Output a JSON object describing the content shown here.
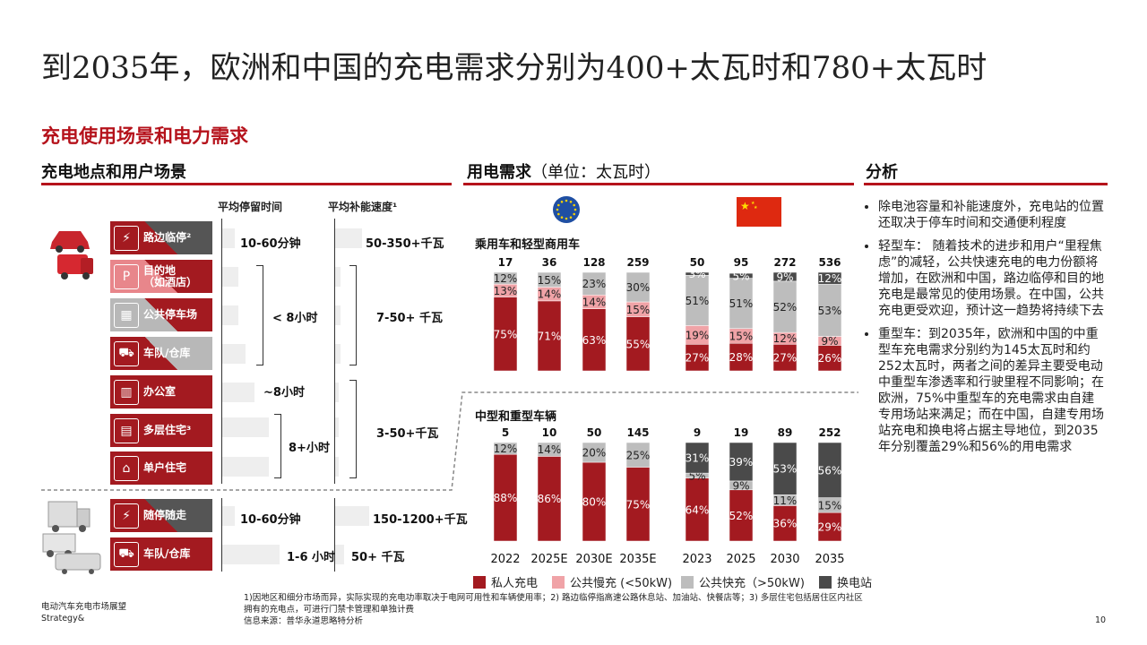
{
  "title": "到2035年，欧洲和中国的充电需求分别为400+太瓦时和780+太瓦时",
  "subtitle": "充电使用场景和电力需求",
  "left": {
    "header": "充电地点和用户场景",
    "col_stay": "平均停留时间",
    "col_speed": "平均补能速度¹",
    "rows": [
      {
        "label": "路边临停²",
        "icon": "charger-icon"
      },
      {
        "label": "目的地\n（如酒店）",
        "icon": "parking-icon"
      },
      {
        "label": "公共停车场",
        "icon": "building-icon"
      },
      {
        "label": "车队/仓库",
        "icon": "fleet-icon"
      },
      {
        "label": "办公室",
        "icon": "office-icon"
      },
      {
        "label": "多层住宅³",
        "icon": "apartment-icon"
      },
      {
        "label": "单户住宅",
        "icon": "house-icon"
      },
      {
        "label": "随停随走",
        "icon": "charger-icon"
      },
      {
        "label": "车队/仓库",
        "icon": "fleet-icon"
      }
    ],
    "stay": {
      "roadside": "10-60分钟",
      "group1": "< 8小时",
      "office": "~8小时",
      "group2": "8+小时",
      "truck_roadside": "10-60分钟",
      "truck_fleet": "1-6 小时"
    },
    "speed": {
      "roadside": "50-350+千瓦",
      "group1": "7-50+ 千瓦",
      "group2": "3-50+千瓦",
      "truck_roadside": "150-1200+千瓦",
      "truck_fleet": "50+ 千瓦"
    }
  },
  "middle": {
    "header": "用电需求",
    "header_unit": "（单位：太瓦时）",
    "section_light": "乘用车和轻型商用车",
    "section_heavy": "中型和重型车辆",
    "legend": [
      "私人充电",
      "公共慢充 (<50kW)",
      "公共快充（>50kW)",
      "换电站"
    ],
    "colors": {
      "private": "#a31a20",
      "slow": "#f0a3a7",
      "fast": "#bdbdbd",
      "swap": "#4a4a4a"
    }
  },
  "chart_data": [
    {
      "type": "bar",
      "title": "乘用车和轻型商用车 - 欧洲",
      "categories": [
        "2022",
        "2025E",
        "2030E",
        "2035E"
      ],
      "totals": [
        17,
        36,
        128,
        259
      ],
      "series": [
        {
          "name": "私人充电",
          "values": [
            75,
            71,
            63,
            55
          ]
        },
        {
          "name": "公共慢充 (<50kW)",
          "values": [
            13,
            14,
            14,
            15
          ]
        },
        {
          "name": "公共快充（>50kW)",
          "values": [
            12,
            15,
            23,
            30
          ]
        }
      ]
    },
    {
      "type": "bar",
      "title": "乘用车和轻型商用车 - 中国",
      "categories": [
        "2023",
        "2025",
        "2030",
        "2035"
      ],
      "totals": [
        50,
        95,
        272,
        536
      ],
      "series": [
        {
          "name": "私人充电",
          "values": [
            27,
            28,
            27,
            26
          ]
        },
        {
          "name": "公共慢充 (<50kW)",
          "values": [
            19,
            15,
            12,
            9
          ]
        },
        {
          "name": "公共快充（>50kW)",
          "values": [
            51,
            51,
            52,
            53
          ]
        },
        {
          "name": "换电站",
          "values": [
            3,
            5,
            9,
            12
          ]
        }
      ]
    },
    {
      "type": "bar",
      "title": "中型和重型车辆 - 欧洲",
      "categories": [
        "2022",
        "2025E",
        "2030E",
        "2035E"
      ],
      "totals": [
        5,
        10,
        50,
        145
      ],
      "series": [
        {
          "name": "私人充电",
          "values": [
            88,
            86,
            80,
            75
          ]
        },
        {
          "name": "公共快充（>50kW)",
          "values": [
            12,
            14,
            20,
            25
          ]
        }
      ]
    },
    {
      "type": "bar",
      "title": "中型和重型车辆 - 中国",
      "categories": [
        "2023",
        "2025",
        "2030",
        "2035"
      ],
      "totals": [
        9,
        19,
        89,
        252
      ],
      "series": [
        {
          "name": "私人充电",
          "values": [
            64,
            52,
            36,
            29
          ]
        },
        {
          "name": "公共快充（>50kW)",
          "values": [
            5,
            9,
            11,
            15
          ]
        },
        {
          "name": "换电站",
          "values": [
            31,
            39,
            53,
            56
          ]
        }
      ]
    }
  ],
  "analysis": {
    "header": "分析",
    "bullets": [
      "除电池容量和补能速度外，充电站的位置还取决于停车时间和交通便利程度",
      "轻型车：  随着技术的进步和用户“里程焦虑”的减轻，公共快速充电的电力份额将增加，在欧洲和中国，路边临停和目的地充电是最常见的使用场景。在中国，公共充电更受欢迎，预计这一趋势将持续下去",
      "重型车：到2035年，欧洲和中国的中重型车充电需求分别约为145太瓦时和约252太瓦时，两者之间的差异主要受电动中重型车渗透率和行驶里程不同影响；在欧洲，75%中重型车的充电需求由自建专用场站来满足；而在中国，自建专用场站充电和换电将占据主导地位，到2035年分别覆盖29%和56%的用电需求"
    ]
  },
  "footer": {
    "left1": "电动汽车充电市场展望",
    "left2": "Strategy&",
    "note1": "1)因地区和细分市场而异，实际实现的充电功率取决于电网可用性和车辆使用率；2) 路边临停指高速公路休息站、加油站、快餐店等；3) 多层住宅包括居住区内社区",
    "note2": "拥有的充电点，可进行门禁卡管理和单独计费",
    "source": "信息来源：普华永道思略特分析",
    "page": "10"
  }
}
